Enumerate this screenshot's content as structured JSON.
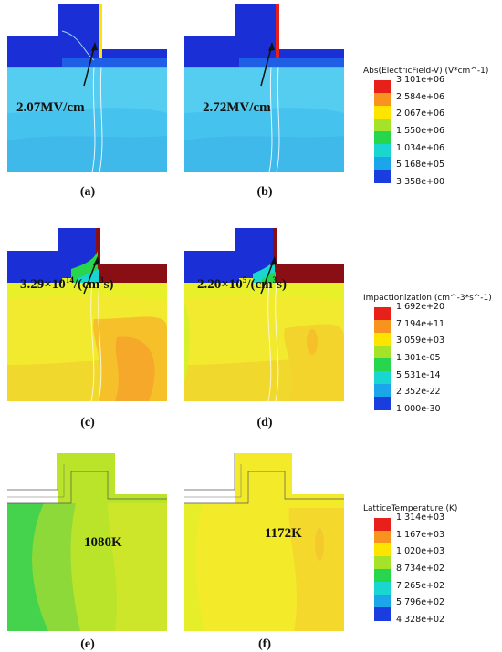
{
  "panels": {
    "a": {
      "caption": "(a)",
      "annotation": "2.07MV/cm"
    },
    "b": {
      "caption": "(b)",
      "annotation": "2.72MV/cm"
    },
    "c": {
      "caption": "(c)",
      "annotation_base": "3.29×10",
      "annotation_exp": "14",
      "annotation_unit": "/(cm",
      "annotation_unit_exp": "3",
      "annotation_tail": "s)"
    },
    "d": {
      "caption": "(d)",
      "annotation_base": "2.20×10",
      "annotation_exp": "5",
      "annotation_unit": "/(cm",
      "annotation_unit_exp": "3",
      "annotation_tail": "s)"
    },
    "e": {
      "caption": "(e)",
      "annotation": "1080K"
    },
    "f": {
      "caption": "(f)",
      "annotation": "1172K"
    }
  },
  "legends": {
    "field": {
      "title": "Abs(ElectricField-V) (V*cm^-1)",
      "labels": [
        "3.101e+06",
        "2.584e+06",
        "2.067e+06",
        "1.550e+06",
        "1.034e+06",
        "5.168e+05",
        "3.358e+00"
      ],
      "colors": [
        "#e8201a",
        "#f7931e",
        "#ffe400",
        "#a5e22a",
        "#27d64c",
        "#19d6d0",
        "#1aa6e8",
        "#1a3de0"
      ]
    },
    "impact": {
      "title": "ImpactIonization (cm^-3*s^-1)",
      "labels": [
        "1.692e+20",
        "7.194e+11",
        "3.059e+03",
        "1.301e-05",
        "5.531e-14",
        "2.352e-22",
        "1.000e-30"
      ],
      "colors": [
        "#e8201a",
        "#f7931e",
        "#ffe400",
        "#a5e22a",
        "#27d64c",
        "#19d6d0",
        "#1aa6e8",
        "#1a3de0"
      ]
    },
    "temp": {
      "title": "LatticeTemperature (K)",
      "labels": [
        "1.314e+03",
        "1.167e+03",
        "1.020e+03",
        "8.734e+02",
        "7.265e+02",
        "5.796e+02",
        "4.328e+02"
      ],
      "colors": [
        "#e8201a",
        "#f7931e",
        "#ffe400",
        "#a5e22a",
        "#27d64c",
        "#19d6d0",
        "#1aa6e8",
        "#1a3de0"
      ]
    }
  },
  "colors": {
    "deep_blue": "#1a2fd6",
    "cyan_light": "#4fc7ef",
    "cyan": "#3ab9ea",
    "yellow": "#f4ee2a",
    "orange_yellow": "#f6c92a",
    "lime": "#b7e62a",
    "green": "#3fd24c",
    "dark_red": "#8a0f14"
  }
}
